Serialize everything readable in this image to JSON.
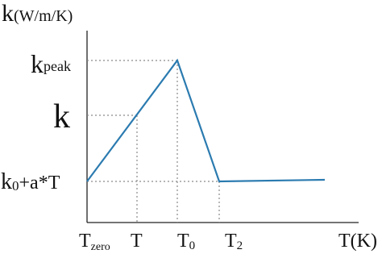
{
  "axis_title_y": {
    "main": "k",
    "rest": "(W/m/K)"
  },
  "y_labels": [
    {
      "main": "k",
      "sub": "peak"
    },
    {
      "main": "k"
    },
    {
      "main": "k",
      "sub": "0",
      "rest": "+a*T"
    }
  ],
  "x_labels": [
    {
      "main": "T",
      "sub": "zero"
    },
    {
      "main": "T"
    },
    {
      "main": "T",
      "sub": "0"
    },
    {
      "main": "T",
      "sub": "2"
    },
    {
      "main": "T(K)"
    }
  ]
}
